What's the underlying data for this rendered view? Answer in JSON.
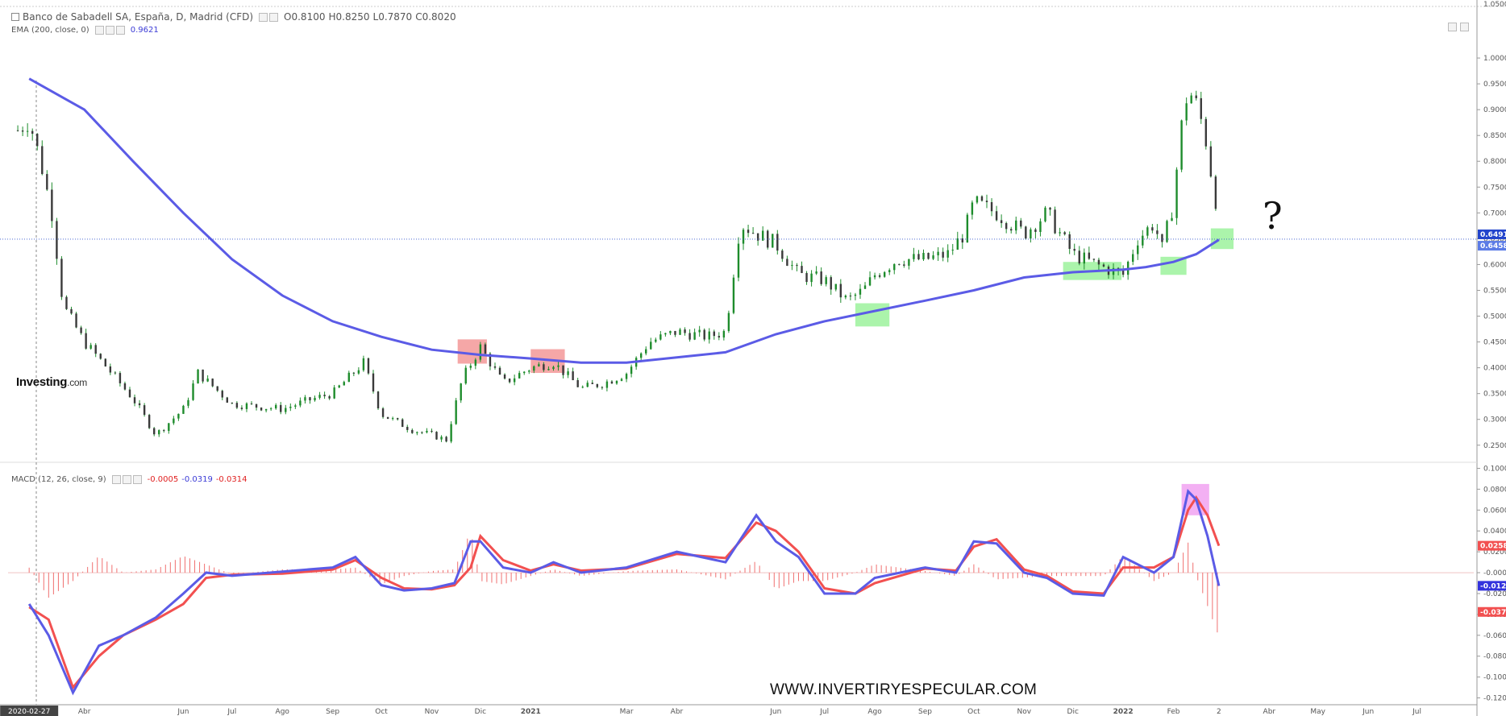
{
  "header": {
    "symbol": "Banco de Sabadell SA, España, D, Madrid (CFD)",
    "ohlc": [
      {
        "label": "O",
        "value": "0.8100"
      },
      {
        "label": "H",
        "value": "0.8250"
      },
      {
        "label": "L",
        "value": "0.7870"
      },
      {
        "label": "C",
        "value": "0.8020"
      }
    ],
    "ema_label": "EMA (200, close, 0)",
    "ema_value": "0.9621",
    "macd_label": "MACD (12, 26, close, 9)",
    "macd_values": [
      "-0.0005",
      "-0.0319",
      "-0.0314"
    ]
  },
  "brand": {
    "name": "Investing",
    "suffix": ".com"
  },
  "watermark": "WWW.INVERTIRYESPECULAR.COM",
  "annotation": "?",
  "colors": {
    "ema": "#5b5be6",
    "macd_line": "#5b5be6",
    "signal_line": "#f25050",
    "candle": "#1e8c2c",
    "hist": "#f07070",
    "red_box": "#f28a8a",
    "green_box": "#8ff08f",
    "pink_box": "#ef95ef"
  },
  "chart_data": [
    {
      "type": "line",
      "title": "Banco de Sabadell SA, España, D, Madrid (CFD)",
      "x_ticks": [
        "2020-02-27",
        "Abr",
        "Jun",
        "Jul",
        "Ago",
        "Sep",
        "Oct",
        "Nov",
        "Dic",
        "2021",
        "Mar",
        "Abr",
        "Jun",
        "Jul",
        "Ago",
        "Sep",
        "Oct",
        "Nov",
        "Dic",
        "2022",
        "Feb",
        "2",
        "Abr",
        "May",
        "Jun",
        "Jul"
      ],
      "y_ticks": [
        "1.0000",
        "0.9500",
        "0.9000",
        "0.8500",
        "0.8000",
        "0.7500",
        "0.7000",
        "0.6500",
        "0.6000",
        "0.5500",
        "0.5000",
        "0.4500",
        "0.4000",
        "0.3500",
        "0.3000",
        "0.2500"
      ],
      "ylim": [
        0.22,
        1.05
      ],
      "y_top_label": "1.0500",
      "price_labels": [
        {
          "text": "0.6491",
          "value": 0.6491
        },
        {
          "text": "0.6458",
          "value": 0.6458
        }
      ],
      "series": [
        {
          "name": "EMA (200, close, 0)",
          "x": [
            "2020-02-27",
            "2020-04-01",
            "2020-05-01",
            "2020-06-01",
            "2020-07-01",
            "2020-08-01",
            "2020-09-01",
            "2020-10-01",
            "2020-11-01",
            "2020-12-01",
            "2021-01-01",
            "2021-02-01",
            "2021-03-01",
            "2021-04-01",
            "2021-05-01",
            "2021-06-01",
            "2021-07-01",
            "2021-08-01",
            "2021-09-01",
            "2021-10-01",
            "2021-11-01",
            "2021-12-01",
            "2022-01-01",
            "2022-01-15",
            "2022-02-01",
            "2022-02-15",
            "2022-03-01"
          ],
          "values": [
            0.96,
            0.9,
            0.8,
            0.7,
            0.61,
            0.54,
            0.49,
            0.46,
            0.435,
            0.425,
            0.418,
            0.41,
            0.41,
            0.42,
            0.43,
            0.465,
            0.49,
            0.51,
            0.53,
            0.55,
            0.575,
            0.585,
            0.59,
            0.595,
            0.605,
            0.62,
            0.648
          ]
        },
        {
          "name": "Close",
          "x": [
            "2020-02-20",
            "2020-02-27",
            "2020-03-05",
            "2020-03-12",
            "2020-03-19",
            "2020-04-01",
            "2020-04-15",
            "2020-05-01",
            "2020-05-15",
            "2020-06-01",
            "2020-06-10",
            "2020-07-01",
            "2020-08-01",
            "2020-08-20",
            "2020-09-01",
            "2020-09-20",
            "2020-10-01",
            "2020-10-20",
            "2020-11-01",
            "2020-11-10",
            "2020-11-20",
            "2020-12-01",
            "2020-12-15",
            "2021-01-01",
            "2021-01-15",
            "2021-02-01",
            "2021-02-15",
            "2021-03-01",
            "2021-03-15",
            "2021-04-01",
            "2021-04-20",
            "2021-05-01",
            "2021-05-10",
            "2021-05-20",
            "2021-06-01",
            "2021-06-15",
            "2021-07-01",
            "2021-07-15",
            "2021-07-25",
            "2021-08-01",
            "2021-08-15",
            "2021-09-01",
            "2021-09-15",
            "2021-09-25",
            "2021-10-01",
            "2021-10-15",
            "2021-11-01",
            "2021-11-15",
            "2021-12-01",
            "2021-12-15",
            "2022-01-01",
            "2022-01-10",
            "2022-01-20",
            "2022-01-25",
            "2022-02-01",
            "2022-02-05",
            "2022-02-10",
            "2022-02-15",
            "2022-02-20",
            "2022-02-25",
            "2022-03-01"
          ],
          "values": [
            0.86,
            0.88,
            0.8,
            0.7,
            0.52,
            0.45,
            0.4,
            0.34,
            0.27,
            0.32,
            0.39,
            0.33,
            0.32,
            0.34,
            0.35,
            0.41,
            0.31,
            0.28,
            0.27,
            0.26,
            0.38,
            0.44,
            0.37,
            0.4,
            0.41,
            0.36,
            0.37,
            0.39,
            0.45,
            0.47,
            0.46,
            0.47,
            0.68,
            0.66,
            0.64,
            0.58,
            0.57,
            0.53,
            0.55,
            0.58,
            0.61,
            0.61,
            0.62,
            0.66,
            0.72,
            0.7,
            0.66,
            0.7,
            0.62,
            0.6,
            0.58,
            0.65,
            0.68,
            0.63,
            0.72,
            0.85,
            0.94,
            0.91,
            0.86,
            0.76,
            0.69
          ]
        }
      ]
    },
    {
      "type": "line",
      "title": "MACD (12, 26, close, 9)",
      "y_ticks": [
        "0.1000",
        "0.0800",
        "0.0600",
        "0.0400",
        "0.0200",
        "-0.0000",
        "-0.0200",
        "-0.0400",
        "-0.0600",
        "-0.0800",
        "-0.1000",
        "-0.1200"
      ],
      "ylim": [
        -0.125,
        0.105
      ],
      "value_labels": [
        {
          "text": "0.0258",
          "value": 0.0258,
          "color": "#f25050"
        },
        {
          "text": "-0.0126",
          "value": -0.0126,
          "color": "#3333dd"
        },
        {
          "text": "-0.0376",
          "value": -0.0376,
          "color": "#f25050"
        }
      ],
      "series": [
        {
          "name": "MACD",
          "x": [
            "2020-02-27",
            "2020-03-10",
            "2020-03-25",
            "2020-04-10",
            "2020-04-25",
            "2020-05-15",
            "2020-06-01",
            "2020-06-15",
            "2020-07-01",
            "2020-08-01",
            "2020-09-01",
            "2020-09-15",
            "2020-10-01",
            "2020-10-15",
            "2020-11-01",
            "2020-11-15",
            "2020-11-25",
            "2020-12-01",
            "2020-12-15",
            "2021-01-01",
            "2021-01-15",
            "2021-02-01",
            "2021-03-01",
            "2021-04-01",
            "2021-05-01",
            "2021-05-20",
            "2021-06-01",
            "2021-06-15",
            "2021-07-01",
            "2021-07-20",
            "2021-08-01",
            "2021-09-01",
            "2021-09-20",
            "2021-10-01",
            "2021-10-15",
            "2021-11-01",
            "2021-11-15",
            "2021-12-01",
            "2021-12-20",
            "2022-01-01",
            "2022-01-20",
            "2022-02-01",
            "2022-02-10",
            "2022-02-15",
            "2022-02-22",
            "2022-03-01"
          ],
          "values": [
            -0.03,
            -0.06,
            -0.115,
            -0.07,
            -0.06,
            -0.043,
            -0.02,
            0.0,
            -0.003,
            0.001,
            0.005,
            0.015,
            -0.012,
            -0.017,
            -0.015,
            -0.01,
            0.03,
            0.03,
            0.005,
            0.0,
            0.01,
            0.0,
            0.005,
            0.02,
            0.01,
            0.055,
            0.03,
            0.015,
            -0.02,
            -0.02,
            -0.005,
            0.005,
            0.0,
            0.03,
            0.028,
            0.0,
            -0.005,
            -0.02,
            -0.022,
            0.015,
            0.0,
            0.015,
            0.078,
            0.07,
            0.035,
            -0.0126
          ]
        },
        {
          "name": "Signal",
          "x": [
            "2020-02-27",
            "2020-03-10",
            "2020-03-25",
            "2020-04-10",
            "2020-04-25",
            "2020-05-15",
            "2020-06-01",
            "2020-06-15",
            "2020-07-01",
            "2020-08-01",
            "2020-09-01",
            "2020-09-15",
            "2020-10-01",
            "2020-10-15",
            "2020-11-01",
            "2020-11-15",
            "2020-11-25",
            "2020-12-01",
            "2020-12-15",
            "2021-01-01",
            "2021-01-15",
            "2021-02-01",
            "2021-03-01",
            "2021-04-01",
            "2021-05-01",
            "2021-05-20",
            "2021-06-01",
            "2021-06-15",
            "2021-07-01",
            "2021-07-20",
            "2021-08-01",
            "2021-09-01",
            "2021-09-20",
            "2021-10-01",
            "2021-10-15",
            "2021-11-01",
            "2021-11-15",
            "2021-12-01",
            "2021-12-20",
            "2022-01-01",
            "2022-01-20",
            "2022-02-01",
            "2022-02-10",
            "2022-02-15",
            "2022-02-22",
            "2022-03-01"
          ],
          "values": [
            -0.033,
            -0.045,
            -0.11,
            -0.08,
            -0.06,
            -0.045,
            -0.03,
            -0.005,
            -0.002,
            -0.001,
            0.003,
            0.012,
            -0.005,
            -0.015,
            -0.016,
            -0.012,
            0.005,
            0.035,
            0.012,
            0.002,
            0.008,
            0.002,
            0.004,
            0.018,
            0.014,
            0.048,
            0.04,
            0.02,
            -0.015,
            -0.02,
            -0.01,
            0.004,
            0.002,
            0.025,
            0.032,
            0.003,
            -0.003,
            -0.018,
            -0.02,
            0.005,
            0.005,
            0.015,
            0.06,
            0.072,
            0.055,
            0.0258
          ]
        }
      ]
    }
  ]
}
